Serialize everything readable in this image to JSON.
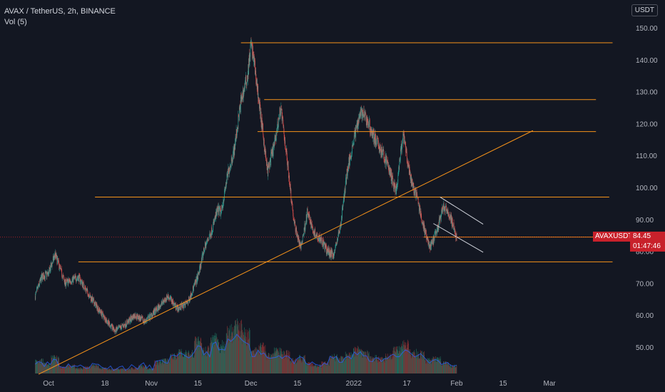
{
  "legend": {
    "title": "AVAX / TetherUS, 2h, BINANCE",
    "volume": "Vol (5)"
  },
  "currency_button": "USDT",
  "last_price": {
    "symbol": "AVAXUSDT",
    "value": "84.45",
    "countdown": "01:47:46"
  },
  "colors": {
    "background": "#131722",
    "up": "#26a69a",
    "down": "#ef5350",
    "drawing": "#f7931a",
    "channel": "#d1d4dc",
    "price_tag": "#c8212b"
  },
  "chart_data": {
    "type": "candlestick",
    "symbol": "AVAX / TetherUS",
    "interval": "2h",
    "exchange": "BINANCE",
    "y_ticks": [
      "50.00",
      "60.00",
      "70.00",
      "80.00",
      "90.00",
      "100.00",
      "110.00",
      "120.00",
      "130.00",
      "140.00",
      "150.00"
    ],
    "x_ticks": [
      "Oct",
      "18",
      "Nov",
      "15",
      "Dec",
      "15",
      "2022",
      "17",
      "Feb",
      "15",
      "Mar"
    ],
    "ylim": [
      41,
      153
    ],
    "close_path": [
      {
        "x": "2021-09-27",
        "y": 66
      },
      {
        "x": "2021-09-29",
        "y": 72
      },
      {
        "x": "2021-10-01",
        "y": 73
      },
      {
        "x": "2021-10-03",
        "y": 79
      },
      {
        "x": "2021-10-06",
        "y": 70
      },
      {
        "x": "2021-10-10",
        "y": 72
      },
      {
        "x": "2021-10-14",
        "y": 65
      },
      {
        "x": "2021-10-18",
        "y": 59
      },
      {
        "x": "2021-10-21",
        "y": 55
      },
      {
        "x": "2021-10-24",
        "y": 57
      },
      {
        "x": "2021-10-27",
        "y": 60
      },
      {
        "x": "2021-10-30",
        "y": 58
      },
      {
        "x": "2021-11-02",
        "y": 61
      },
      {
        "x": "2021-11-06",
        "y": 66
      },
      {
        "x": "2021-11-09",
        "y": 62
      },
      {
        "x": "2021-11-12",
        "y": 64
      },
      {
        "x": "2021-11-15",
        "y": 72
      },
      {
        "x": "2021-11-17",
        "y": 81
      },
      {
        "x": "2021-11-19",
        "y": 86
      },
      {
        "x": "2021-11-21",
        "y": 93
      },
      {
        "x": "2021-11-22",
        "y": 92
      },
      {
        "x": "2021-11-24",
        "y": 104
      },
      {
        "x": "2021-11-26",
        "y": 112
      },
      {
        "x": "2021-11-28",
        "y": 127
      },
      {
        "x": "2021-11-30",
        "y": 135
      },
      {
        "x": "2021-12-01",
        "y": 145
      },
      {
        "x": "2021-12-02",
        "y": 139
      },
      {
        "x": "2021-12-04",
        "y": 122
      },
      {
        "x": "2021-12-06",
        "y": 105
      },
      {
        "x": "2021-12-08",
        "y": 113
      },
      {
        "x": "2021-12-10",
        "y": 125
      },
      {
        "x": "2021-12-12",
        "y": 108
      },
      {
        "x": "2021-12-14",
        "y": 89
      },
      {
        "x": "2021-12-16",
        "y": 81
      },
      {
        "x": "2021-12-18",
        "y": 92
      },
      {
        "x": "2021-12-20",
        "y": 86
      },
      {
        "x": "2021-12-22",
        "y": 84
      },
      {
        "x": "2021-12-24",
        "y": 80
      },
      {
        "x": "2021-12-26",
        "y": 79
      },
      {
        "x": "2021-12-28",
        "y": 88
      },
      {
        "x": "2021-12-30",
        "y": 105
      },
      {
        "x": "2022-01-01",
        "y": 115
      },
      {
        "x": "2022-01-03",
        "y": 124
      },
      {
        "x": "2022-01-05",
        "y": 121
      },
      {
        "x": "2022-01-07",
        "y": 116
      },
      {
        "x": "2022-01-09",
        "y": 112
      },
      {
        "x": "2022-01-11",
        "y": 108
      },
      {
        "x": "2022-01-13",
        "y": 101
      },
      {
        "x": "2022-01-14",
        "y": 99
      },
      {
        "x": "2022-01-15",
        "y": 110
      },
      {
        "x": "2022-01-16",
        "y": 116
      },
      {
        "x": "2022-01-18",
        "y": 103
      },
      {
        "x": "2022-01-20",
        "y": 97
      },
      {
        "x": "2022-01-22",
        "y": 88
      },
      {
        "x": "2022-01-24",
        "y": 81
      },
      {
        "x": "2022-01-26",
        "y": 86
      },
      {
        "x": "2022-01-28",
        "y": 94
      },
      {
        "x": "2022-01-30",
        "y": 91
      },
      {
        "x": "2022-02-01",
        "y": 84.45
      }
    ],
    "drawings": {
      "horizontal_lines": [
        {
          "price": 145.3,
          "from": "2021-11-28",
          "to": "2022-03-20"
        },
        {
          "price": 127.5,
          "from": "2021-12-05",
          "to": "2022-03-15"
        },
        {
          "price": 117.5,
          "from": "2021-12-03",
          "to": "2022-03-15"
        },
        {
          "price": 97.0,
          "from": "2021-10-15",
          "to": "2022-03-19"
        },
        {
          "price": 84.45,
          "from": "2022-01-22",
          "to": "2022-03-20"
        },
        {
          "price": 76.7,
          "from": "2021-10-10",
          "to": "2022-03-20"
        }
      ],
      "trendline": {
        "from": {
          "x": "2021-09-28",
          "y": 41.5
        },
        "to": {
          "x": "2022-02-24",
          "y": 117.8
        }
      },
      "channel_lines": [
        {
          "from": {
            "x": "2022-01-27",
            "y": 97.0
          },
          "to": {
            "x": "2022-02-09",
            "y": 88.5
          }
        },
        {
          "from": {
            "x": "2022-01-25",
            "y": 88.7
          },
          "to": {
            "x": "2022-02-09",
            "y": 79.7
          }
        }
      ]
    },
    "volume_profile": [
      0.25,
      0.18,
      0.3,
      0.12,
      0.15,
      0.1,
      0.12,
      0.16,
      0.1,
      0.08,
      0.09,
      0.08,
      0.1,
      0.14,
      0.09,
      0.22,
      0.25,
      0.35,
      0.4,
      0.38,
      0.6,
      0.45,
      0.7,
      0.55,
      0.8,
      0.9,
      0.75,
      0.45,
      0.5,
      0.35,
      0.42,
      0.38,
      0.25,
      0.3,
      0.18,
      0.15,
      0.2,
      0.32,
      0.28,
      0.35,
      0.45,
      0.4,
      0.3,
      0.28,
      0.35,
      0.45,
      0.55,
      0.4,
      0.38,
      0.25,
      0.3,
      0.2,
      0.15
    ]
  }
}
